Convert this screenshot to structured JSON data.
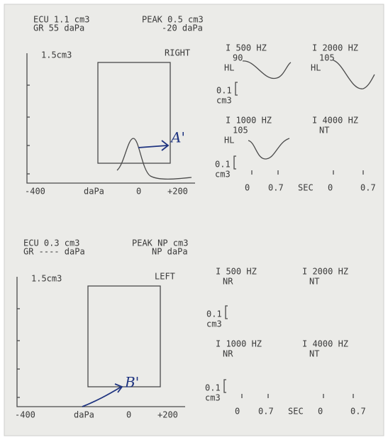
{
  "right": {
    "ecu": "ECU 1.1 cm3",
    "peak": "PEAK 0.5 cm3",
    "gr": "GR 55 daPa",
    "gr_peak": "-20 daPa",
    "scale": "1.5cm3",
    "ear": "RIGHT",
    "x_axis": [
      "-400",
      "daPa",
      "0",
      "+200"
    ],
    "reflexes": [
      {
        "freq": "I 500 HZ",
        "level": "90",
        "unit": "HL"
      },
      {
        "freq": "I 2000 HZ",
        "level": "105",
        "unit": "HL"
      },
      {
        "freq": "I 1000 HZ",
        "level": "105",
        "unit": "HL"
      },
      {
        "freq": "I 4000 HZ",
        "level": "NT"
      }
    ],
    "reflex_scales": [
      {
        "value": "0.1",
        "unit": "cm3"
      },
      {
        "value": "0.1",
        "unit": "cm3"
      }
    ],
    "time_axis": [
      "0",
      "0.7",
      "SEC",
      "0",
      "0.7"
    ],
    "annotation": "A'"
  },
  "left": {
    "ecu": "ECU 0.3 cm3",
    "peak": "PEAK NP cm3",
    "gr": "GR ---- daPa",
    "gr_peak": "NP daPa",
    "scale": "1.5cm3",
    "ear": "LEFT",
    "x_axis": [
      "-400",
      "daPa",
      "0",
      "+200"
    ],
    "reflexes": [
      {
        "freq": "I 500 HZ",
        "level": "NR"
      },
      {
        "freq": "I 2000 HZ",
        "level": "NT"
      },
      {
        "freq": "I 1000 HZ",
        "level": "NR"
      },
      {
        "freq": "I 4000 HZ",
        "level": "NT"
      }
    ],
    "reflex_scales": [
      {
        "value": "0.1",
        "unit": "cm3"
      },
      {
        "value": "0.1",
        "unit": "cm3"
      }
    ],
    "time_axis": [
      "0",
      "0.7",
      "SEC",
      "0",
      "0.7"
    ],
    "annotation": "B'"
  }
}
